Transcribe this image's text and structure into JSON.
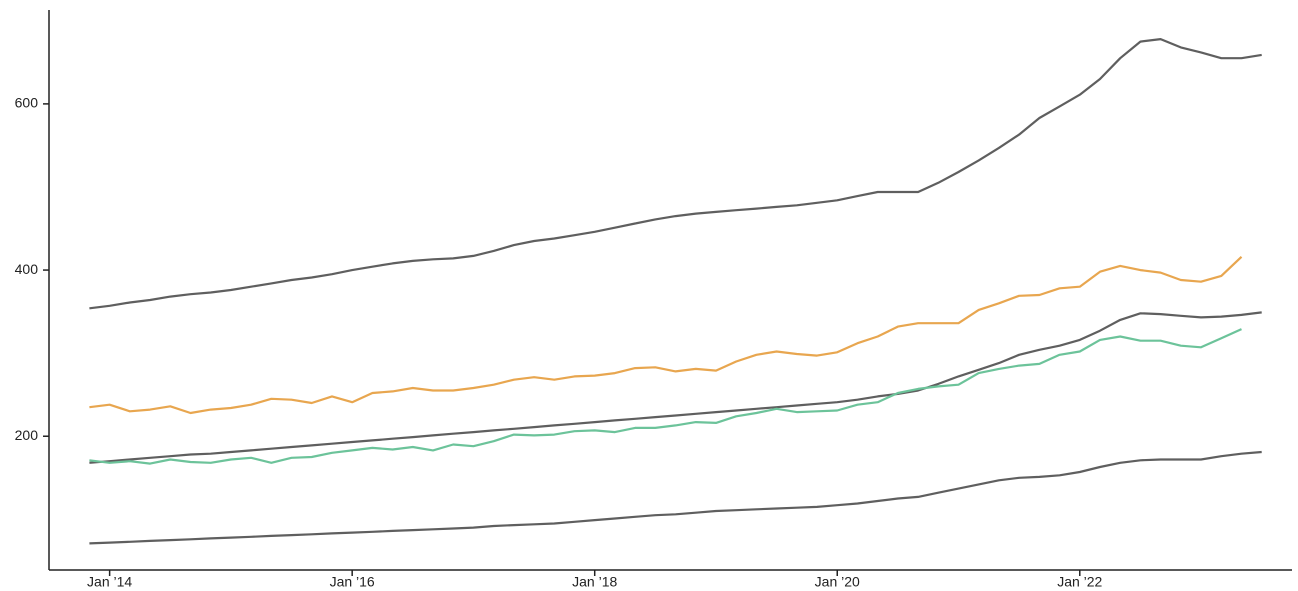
{
  "chart_data": {
    "type": "line",
    "x": [
      "2013-11",
      "2014-01",
      "2014-03",
      "2014-05",
      "2014-07",
      "2014-09",
      "2014-11",
      "2015-01",
      "2015-03",
      "2015-05",
      "2015-07",
      "2015-09",
      "2015-11",
      "2016-01",
      "2016-03",
      "2016-05",
      "2016-07",
      "2016-09",
      "2016-11",
      "2017-01",
      "2017-03",
      "2017-05",
      "2017-07",
      "2017-09",
      "2017-11",
      "2018-01",
      "2018-03",
      "2018-05",
      "2018-07",
      "2018-09",
      "2018-11",
      "2019-01",
      "2019-03",
      "2019-05",
      "2019-07",
      "2019-09",
      "2019-11",
      "2020-01",
      "2020-03",
      "2020-05",
      "2020-07",
      "2020-09",
      "2020-11",
      "2021-01",
      "2021-03",
      "2021-05",
      "2021-07",
      "2021-09",
      "2021-11",
      "2022-01",
      "2022-03",
      "2022-05",
      "2022-07",
      "2022-09",
      "2022-11",
      "2023-01",
      "2023-03",
      "2023-05",
      "2023-07"
    ],
    "series": [
      {
        "color": "#5f5f5f",
        "values": [
          354,
          357,
          361,
          364,
          368,
          371,
          373,
          376,
          380,
          384,
          388,
          391,
          395,
          400,
          404,
          408,
          411,
          413,
          414,
          417,
          423,
          430,
          435,
          438,
          442,
          446,
          451,
          456,
          461,
          465,
          468,
          470,
          472,
          474,
          476,
          478,
          481,
          484,
          489,
          494,
          494,
          494,
          505,
          518,
          532,
          547,
          563,
          583,
          597,
          611,
          630,
          655,
          675,
          678,
          668,
          662,
          655,
          655,
          659
        ]
      },
      {
        "color": "#e8a64f",
        "values": [
          235,
          238,
          230,
          232,
          236,
          228,
          232,
          234,
          238,
          245,
          244,
          240,
          248,
          241,
          252,
          254,
          258,
          255,
          255,
          258,
          262,
          268,
          271,
          268,
          272,
          273,
          276,
          282,
          283,
          278,
          281,
          279,
          290,
          298,
          302,
          299,
          297,
          301,
          312,
          320,
          332,
          336,
          336,
          336,
          352,
          360,
          369,
          370,
          378,
          380,
          398,
          405,
          400,
          397,
          388,
          386,
          393,
          416,
          null
        ]
      },
      {
        "color": "#5f5f5f",
        "values": [
          168,
          170,
          172,
          174,
          176,
          178,
          179,
          181,
          183,
          185,
          187,
          189,
          191,
          193,
          195,
          197,
          199,
          201,
          203,
          205,
          207,
          209,
          211,
          213,
          215,
          217,
          219,
          221,
          223,
          225,
          227,
          229,
          231,
          233,
          235,
          237,
          239,
          241,
          244,
          248,
          251,
          255,
          263,
          272,
          280,
          288,
          298,
          304,
          309,
          316,
          327,
          340,
          348,
          347,
          345,
          343,
          344,
          346,
          349
        ]
      },
      {
        "color": "#6cc39a",
        "values": [
          171,
          168,
          170,
          167,
          172,
          169,
          168,
          172,
          174,
          168,
          174,
          175,
          180,
          183,
          186,
          184,
          187,
          183,
          190,
          188,
          194,
          202,
          201,
          202,
          206,
          207,
          205,
          210,
          210,
          213,
          217,
          216,
          224,
          228,
          233,
          229,
          230,
          231,
          238,
          241,
          252,
          257,
          260,
          262,
          276,
          281,
          285,
          287,
          298,
          302,
          316,
          320,
          315,
          315,
          309,
          307,
          318,
          329,
          null
        ]
      },
      {
        "color": "#5f5f5f",
        "values": [
          71,
          72,
          73,
          74,
          75,
          76,
          77,
          78,
          79,
          80,
          81,
          82,
          83,
          84,
          85,
          86,
          87,
          88,
          89,
          90,
          92,
          93,
          94,
          95,
          97,
          99,
          101,
          103,
          105,
          106,
          108,
          110,
          111,
          112,
          113,
          114,
          115,
          117,
          119,
          122,
          125,
          127,
          132,
          137,
          142,
          147,
          150,
          151,
          153,
          157,
          163,
          168,
          171,
          172,
          172,
          172,
          176,
          179,
          181
        ]
      }
    ],
    "xlim": [
      "2013-07",
      "2023-10"
    ],
    "xticks": [
      {
        "value": "2014-01",
        "label": "Jan ’14"
      },
      {
        "value": "2016-01",
        "label": "Jan ’16"
      },
      {
        "value": "2018-01",
        "label": "Jan ’18"
      },
      {
        "value": "2020-01",
        "label": "Jan ’20"
      },
      {
        "value": "2022-01",
        "label": "Jan ’22"
      }
    ],
    "ylim": [
      39,
      713
    ],
    "yticks": [
      200,
      400,
      600
    ],
    "grid": false
  }
}
